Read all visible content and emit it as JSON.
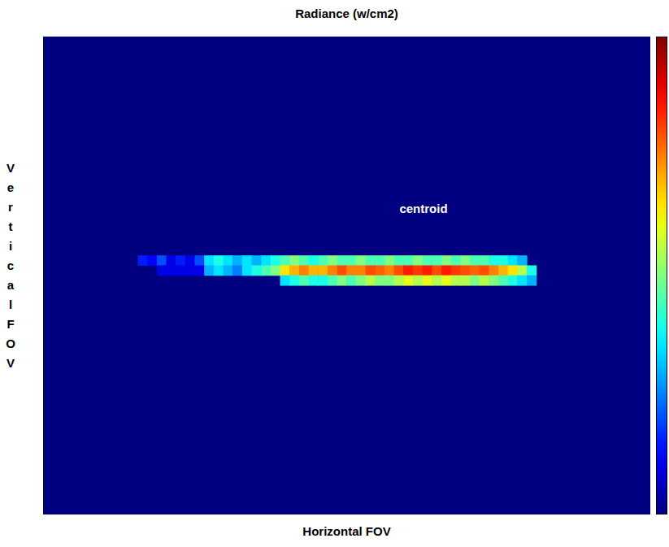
{
  "chart_data": {
    "type": "heatmap",
    "title": "Radiance (w/cm2)",
    "x_label": "Horizontal FOV",
    "y_label": "Vertical FOV",
    "xlim": [
      0,
      64
    ],
    "ylim": [
      0,
      48
    ],
    "tick_labels": false,
    "colorbar_range": [
      0,
      1
    ],
    "cells": [
      {
        "row": 22,
        "col_start": 10,
        "values": [
          0.15,
          0.12,
          0.2,
          0.1,
          0.15,
          0.1,
          0.2,
          0.35,
          0.4,
          0.35,
          0.3,
          0.35,
          0.3,
          0.35,
          0.4,
          0.45,
          0.5,
          0.45,
          0.4,
          0.45,
          0.5,
          0.45,
          0.45,
          0.5,
          0.45,
          0.45,
          0.5,
          0.45,
          0.45,
          0.5,
          0.45,
          0.45,
          0.5,
          0.45,
          0.5,
          0.45,
          0.45,
          0.4,
          0.4,
          0.35,
          0.3
        ]
      },
      {
        "row": 23,
        "col_start": 12,
        "values": [
          0.1,
          0.1,
          0.1,
          0.1,
          0.1,
          0.3,
          0.35,
          0.3,
          0.25,
          0.35,
          0.4,
          0.45,
          0.5,
          0.65,
          0.7,
          0.75,
          0.7,
          0.7,
          0.75,
          0.8,
          0.75,
          0.75,
          0.8,
          0.78,
          0.75,
          0.8,
          0.85,
          0.82,
          0.85,
          0.8,
          0.85,
          0.82,
          0.8,
          0.78,
          0.8,
          0.75,
          0.7,
          0.65,
          0.55,
          0.4
        ]
      },
      {
        "row": 24,
        "col_start": 25,
        "values": [
          0.35,
          0.4,
          0.45,
          0.4,
          0.4,
          0.45,
          0.5,
          0.45,
          0.5,
          0.55,
          0.5,
          0.5,
          0.55,
          0.6,
          0.55,
          0.6,
          0.55,
          0.6,
          0.55,
          0.55,
          0.5,
          0.55,
          0.5,
          0.45,
          0.4,
          0.35,
          0.3
        ]
      }
    ],
    "annotations": [
      {
        "text": "centroid",
        "x": 40.1,
        "y": 23.4,
        "line_top": 18.5,
        "color": "#e0141c"
      }
    ]
  }
}
